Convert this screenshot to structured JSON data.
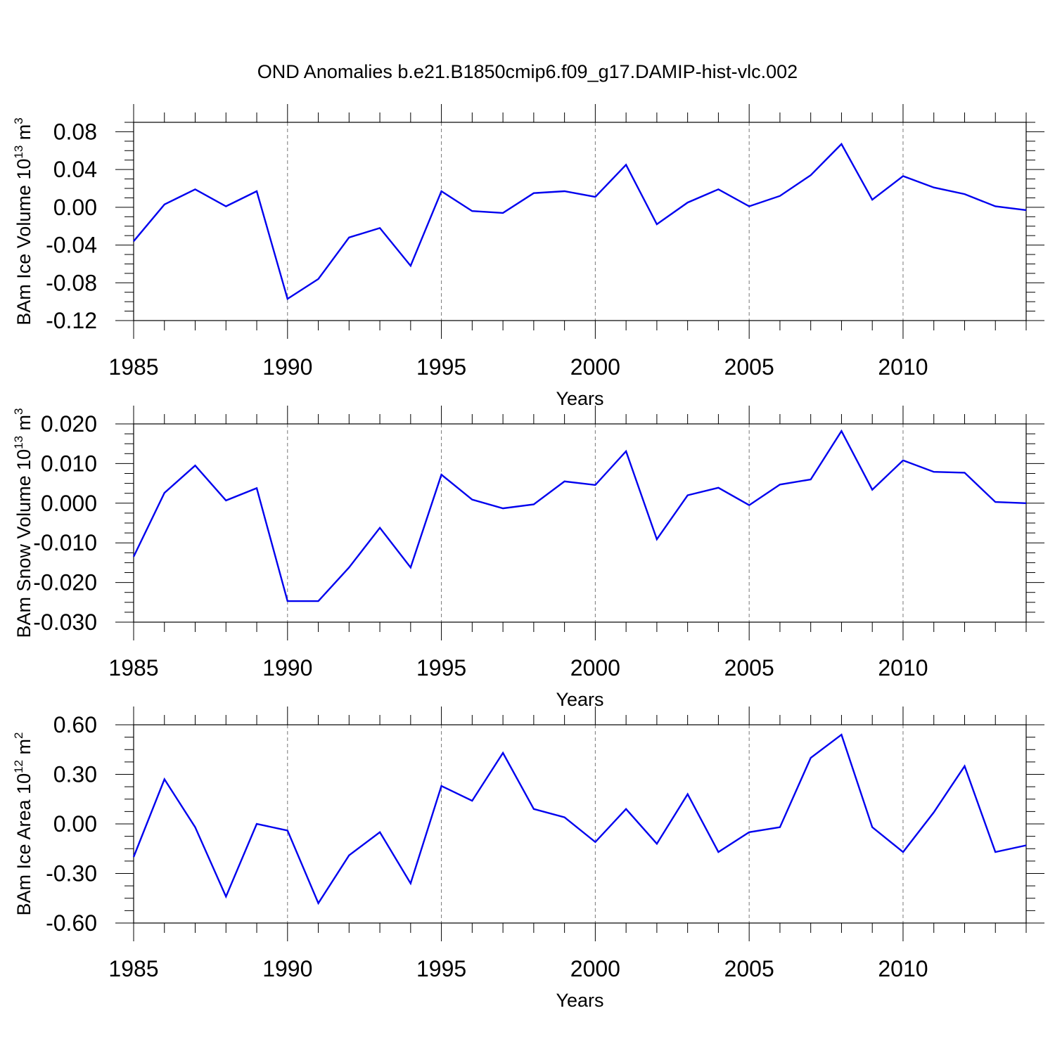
{
  "title": "OND Anomalies b.e21.B1850cmip6.f09_g17.DAMIP-hist-vlc.002",
  "chart_data": [
    {
      "type": "line",
      "xlabel": "Years",
      "ylabel": {
        "base": "BAm Ice Volume 10",
        "exp": "13",
        "unit": " m",
        "unit_exp": "3"
      },
      "xlim": [
        1985,
        2014
      ],
      "ylim": [
        -0.12,
        0.09
      ],
      "xticks": [
        "1985",
        "1990",
        "1995",
        "2000",
        "2005",
        "2010"
      ],
      "xtick_values": [
        1985,
        1990,
        1995,
        2000,
        2005,
        2010
      ],
      "yticks": [
        "0.08",
        "0.04",
        "0.00",
        "-0.04",
        "-0.08",
        "-0.12"
      ],
      "ytick_values": [
        0.08,
        0.04,
        0.0,
        -0.04,
        -0.08,
        -0.12
      ],
      "grid": "vertical dashed at major x ticks",
      "color": "#0000ee",
      "x": [
        1985,
        1986,
        1987,
        1988,
        1989,
        1990,
        1991,
        1992,
        1993,
        1994,
        1995,
        1996,
        1997,
        1998,
        1999,
        2000,
        2001,
        2002,
        2003,
        2004,
        2005,
        2006,
        2007,
        2008,
        2009,
        2010,
        2011,
        2012,
        2013,
        2014
      ],
      "values": [
        -0.036,
        0.003,
        0.019,
        0.001,
        0.017,
        -0.097,
        -0.076,
        -0.032,
        -0.022,
        -0.062,
        0.017,
        -0.004,
        -0.006,
        0.015,
        0.017,
        0.011,
        0.045,
        -0.018,
        0.005,
        0.019,
        0.001,
        0.012,
        0.034,
        0.067,
        0.008,
        0.033,
        0.021,
        0.014,
        0.001,
        -0.003
      ]
    },
    {
      "type": "line",
      "xlabel": "Years",
      "ylabel": {
        "base": "BAm Snow Volume 10",
        "exp": "13",
        "unit": " m",
        "unit_exp": "3"
      },
      "xlim": [
        1985,
        2014
      ],
      "ylim": [
        -0.03,
        0.02
      ],
      "xticks": [
        "1985",
        "1990",
        "1995",
        "2000",
        "2005",
        "2010"
      ],
      "xtick_values": [
        1985,
        1990,
        1995,
        2000,
        2005,
        2010
      ],
      "yticks": [
        "0.020",
        "0.010",
        "0.000",
        "-0.010",
        "-0.020",
        "-0.030"
      ],
      "ytick_values": [
        0.02,
        0.01,
        0.0,
        -0.01,
        -0.02,
        -0.03
      ],
      "grid": "vertical dashed at major x ticks",
      "color": "#0000ee",
      "x": [
        1985,
        1986,
        1987,
        1988,
        1989,
        1990,
        1991,
        1992,
        1993,
        1994,
        1995,
        1996,
        1997,
        1998,
        1999,
        2000,
        2001,
        2002,
        2003,
        2004,
        2005,
        2006,
        2007,
        2008,
        2009,
        2010,
        2011,
        2012,
        2013,
        2014
      ],
      "values": [
        -0.0135,
        0.0026,
        0.0095,
        0.0007,
        0.0038,
        -0.0247,
        -0.0247,
        -0.0162,
        -0.0062,
        -0.0162,
        0.0072,
        0.0009,
        -0.0013,
        -0.0003,
        0.0055,
        0.0046,
        0.0131,
        -0.0091,
        0.002,
        0.0039,
        -0.0005,
        0.0047,
        0.006,
        0.0182,
        0.0034,
        0.0108,
        0.0079,
        0.0077,
        0.0003,
        0.0
      ]
    },
    {
      "type": "line",
      "xlabel": "Years",
      "ylabel": {
        "base": "BAm Ice Area 10",
        "exp": "12",
        "unit": " m",
        "unit_exp": "2"
      },
      "xlim": [
        1985,
        2014
      ],
      "ylim": [
        -0.6,
        0.6
      ],
      "xticks": [
        "1985",
        "1990",
        "1995",
        "2000",
        "2005",
        "2010"
      ],
      "xtick_values": [
        1985,
        1990,
        1995,
        2000,
        2005,
        2010
      ],
      "yticks": [
        "0.60",
        "0.30",
        "0.00",
        "-0.30",
        "-0.60"
      ],
      "ytick_values": [
        0.6,
        0.3,
        0.0,
        -0.3,
        -0.6
      ],
      "grid": "vertical dashed at major x ticks",
      "color": "#0000ee",
      "x": [
        1985,
        1986,
        1987,
        1988,
        1989,
        1990,
        1991,
        1992,
        1993,
        1994,
        1995,
        1996,
        1997,
        1998,
        1999,
        2000,
        2001,
        2002,
        2003,
        2004,
        2005,
        2006,
        2007,
        2008,
        2009,
        2010,
        2011,
        2012,
        2013,
        2014
      ],
      "values": [
        -0.2,
        0.27,
        -0.02,
        -0.44,
        0.0,
        -0.04,
        -0.48,
        -0.19,
        -0.05,
        -0.36,
        0.23,
        0.14,
        0.43,
        0.09,
        0.04,
        -0.11,
        0.09,
        -0.12,
        0.18,
        -0.17,
        -0.05,
        -0.02,
        0.4,
        0.54,
        -0.02,
        -0.17,
        0.07,
        0.35,
        -0.17,
        -0.13
      ]
    }
  ]
}
